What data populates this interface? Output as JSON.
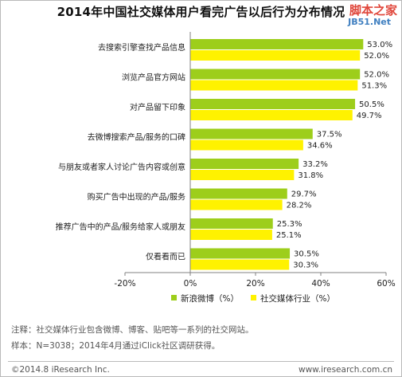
{
  "chart_data": {
    "type": "bar",
    "orientation": "horizontal",
    "title": "2014年中国社交媒体用户看完广告以后行为分布情况",
    "categories": [
      "去搜索引擎查找产品信息",
      "浏览产品官方网站",
      "对产品留下印象",
      "去微博搜索产品/服务的口碑",
      "与朋友或者家人讨论广告内容或创意",
      "购买广告中出现的产品/服务",
      "推荐广告中的产品/服务给家人或朋友",
      "仅看看而已"
    ],
    "series": [
      {
        "name": "新浪微博（%）",
        "values": [
          53.0,
          52.0,
          50.5,
          37.5,
          33.2,
          29.7,
          25.3,
          30.5
        ],
        "labels": [
          "53.0%",
          "52.0%",
          "50.5%",
          "37.5%",
          "33.2%",
          "29.7%",
          "25.3%",
          "30.5%"
        ]
      },
      {
        "name": "社交媒体行业（%）",
        "values": [
          52.0,
          51.3,
          49.7,
          34.6,
          31.8,
          28.2,
          25.1,
          30.3
        ],
        "labels": [
          "52.0%",
          "51.3%",
          "49.7%",
          "34.6%",
          "31.8%",
          "28.2%",
          "25.1%",
          "30.3%"
        ]
      }
    ],
    "xlim": [
      -20,
      60
    ],
    "xticks": [
      -20,
      0,
      20,
      40,
      60
    ],
    "xtick_labels": [
      "-20%",
      "0%",
      "20%",
      "40%",
      "60%"
    ],
    "legend_position": "bottom",
    "grid": false
  },
  "colors": {
    "series1": "#9dce1b",
    "series2": "#fff200",
    "axis": "#808080"
  },
  "watermark": {
    "main": "脚本之家",
    "sub": "JB51.Net"
  },
  "notes": {
    "note": "注释：社交媒体行业包含微博、博客、贴吧等一系列的社交网站。",
    "sample": "样本：N=3038；2014年4月通过iClick社区调研获得。"
  },
  "footer": {
    "copyright": "©2014.8 iResearch Inc.",
    "website": "www.iresearch.com.cn"
  }
}
